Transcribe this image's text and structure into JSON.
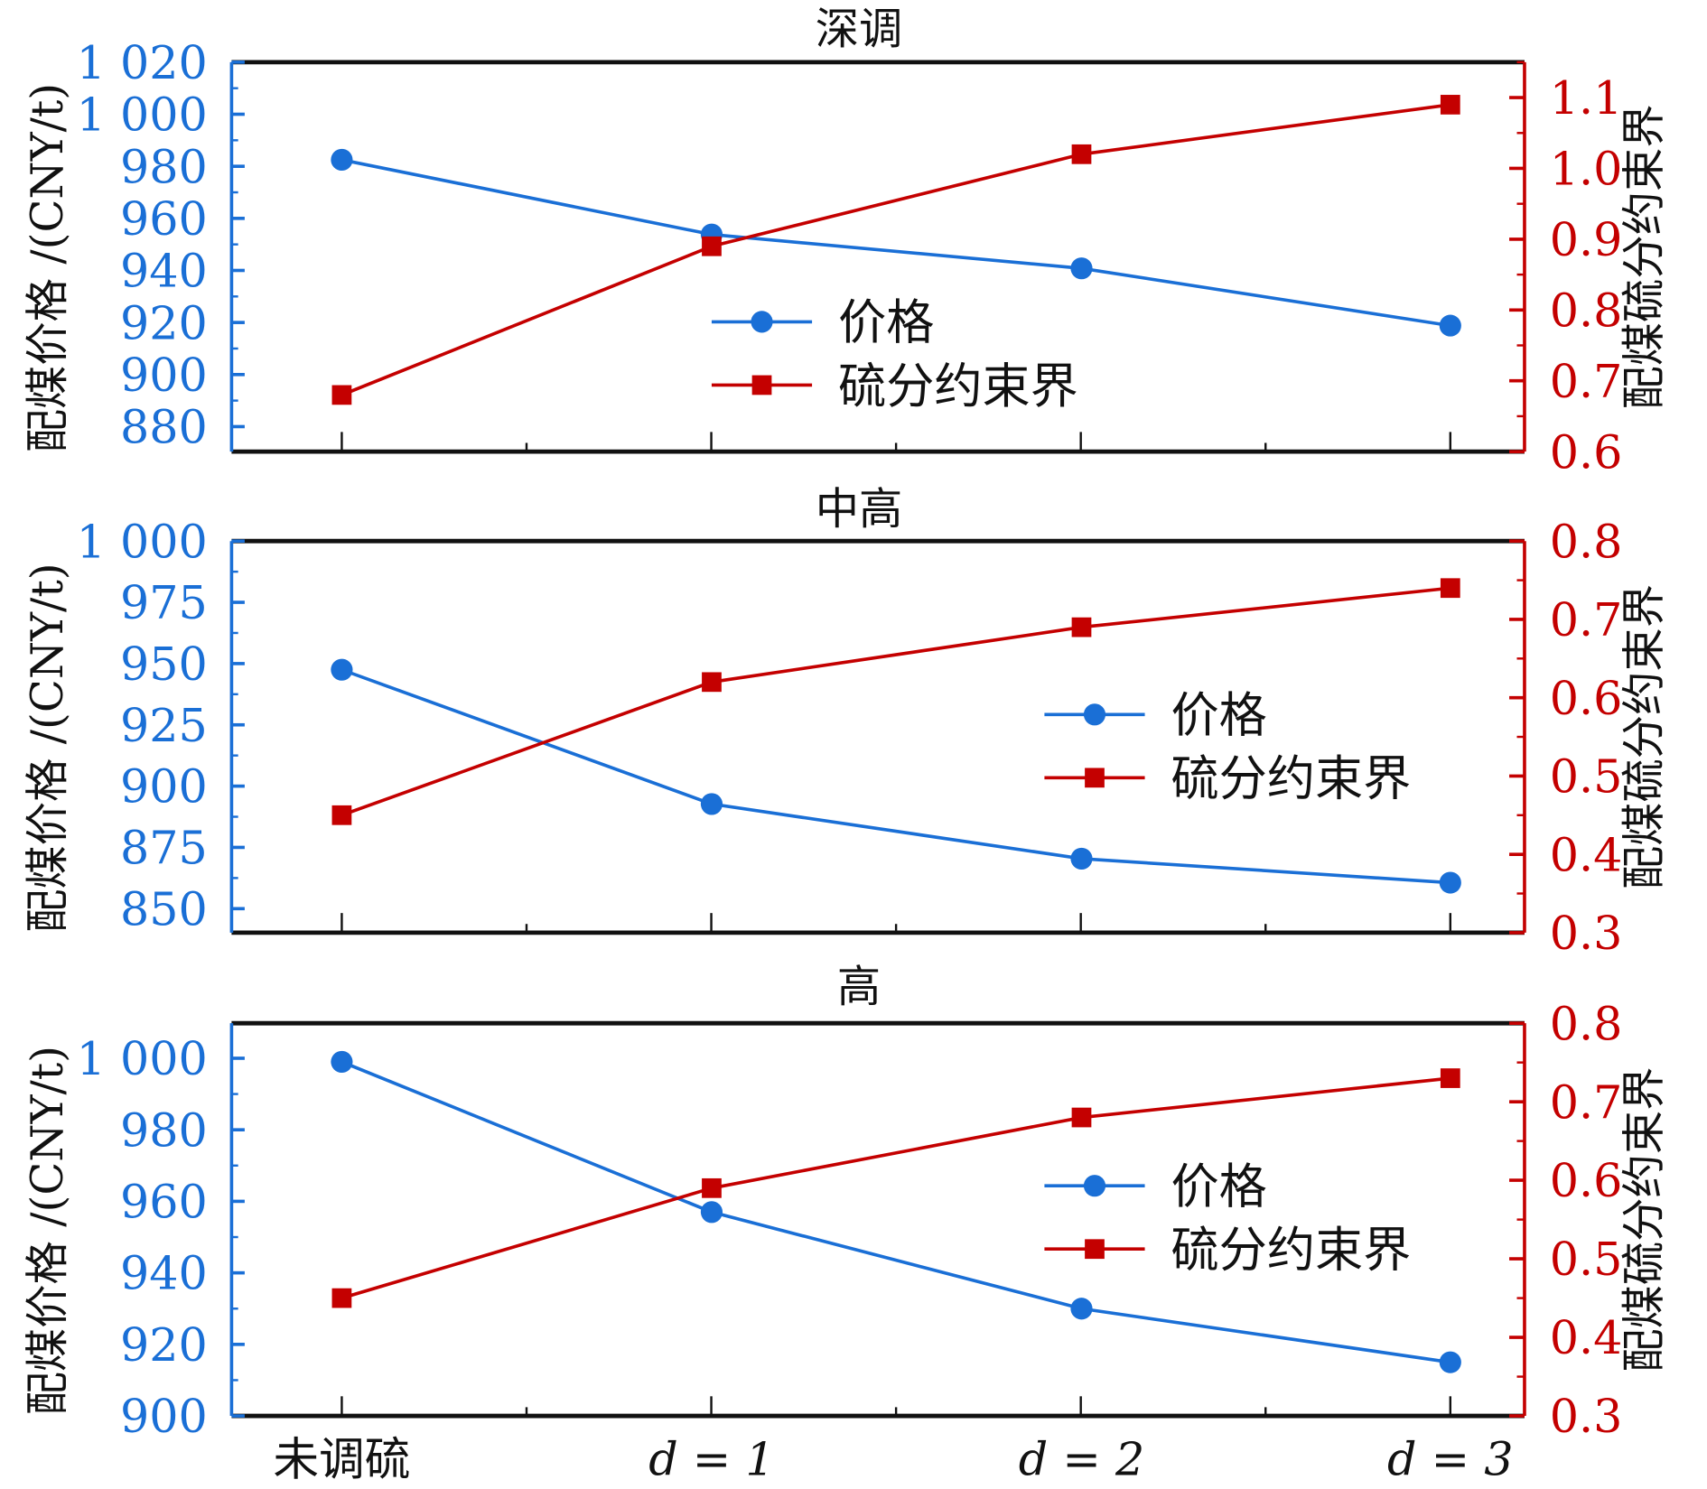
{
  "chart_data": [
    {
      "type": "line",
      "title": "深调",
      "categories": [
        "未调硫",
        "d = 1",
        "d = 2",
        "d = 3"
      ],
      "ylabel": "配煤价格 /(CNY/t)",
      "ylabel_right": "配煤硫分约束界",
      "ylim": [
        870.4,
        1020
      ],
      "ylim_right": [
        0.6,
        1.15
      ],
      "yticks": [
        "880",
        "900",
        "920",
        "940",
        "960",
        "980",
        "1 000",
        "1 020"
      ],
      "ytick_values": [
        880,
        900,
        920,
        940,
        960,
        980,
        1000,
        1020
      ],
      "yticks_right": [
        "0.6",
        "0.7",
        "0.8",
        "0.9",
        "1.0",
        "1.1"
      ],
      "ytick_values_right": [
        0.6,
        0.7,
        0.8,
        0.9,
        1.0,
        1.1
      ],
      "legend_position": "center",
      "series": [
        {
          "name": "价格",
          "axis": "left",
          "color": "#1a6fd6",
          "marker": "circle",
          "values": [
            982.5,
            953.8,
            940.8,
            918.8
          ]
        },
        {
          "name": "硫分约束界",
          "axis": "right",
          "color": "#c40000",
          "marker": "square",
          "values": [
            0.68,
            0.89,
            1.02,
            1.09
          ]
        }
      ]
    },
    {
      "type": "line",
      "title": "中高",
      "categories": [
        "未调硫",
        "d = 1",
        "d = 2",
        "d = 3"
      ],
      "ylabel": "配煤价格 /(CNY/t)",
      "ylabel_right": "配煤硫分约束界",
      "ylim": [
        840.2,
        1000
      ],
      "ylim_right": [
        0.3,
        0.8
      ],
      "yticks": [
        "850",
        "875",
        "900",
        "925",
        "950",
        "975",
        "1 000"
      ],
      "ytick_values": [
        850,
        875,
        900,
        925,
        950,
        975,
        1000
      ],
      "yticks_right": [
        "0.3",
        "0.4",
        "0.5",
        "0.6",
        "0.7",
        "0.8"
      ],
      "ytick_values_right": [
        0.3,
        0.4,
        0.5,
        0.6,
        0.7,
        0.8
      ],
      "legend_position": "center-right",
      "series": [
        {
          "name": "价格",
          "axis": "left",
          "color": "#1a6fd6",
          "marker": "circle",
          "values": [
            947.5,
            892.7,
            870.4,
            860.6
          ]
        },
        {
          "name": "硫分约束界",
          "axis": "right",
          "color": "#c40000",
          "marker": "square",
          "values": [
            0.45,
            0.62,
            0.69,
            0.74
          ]
        }
      ]
    },
    {
      "type": "line",
      "title": "高",
      "categories": [
        "未调硫",
        "d = 1",
        "d = 2",
        "d = 3"
      ],
      "ylabel": "配煤价格 /(CNY/t)",
      "ylabel_right": "配煤硫分约束界",
      "ylim": [
        900,
        1009.8
      ],
      "ylim_right": [
        0.3,
        0.8
      ],
      "yticks": [
        "900",
        "920",
        "940",
        "960",
        "980",
        "1 000"
      ],
      "ytick_values": [
        900,
        920,
        940,
        960,
        980,
        1000
      ],
      "yticks_right": [
        "0.3",
        "0.4",
        "0.5",
        "0.6",
        "0.7",
        "0.8"
      ],
      "ytick_values_right": [
        0.3,
        0.4,
        0.5,
        0.6,
        0.7,
        0.8
      ],
      "legend_position": "center-right",
      "series": [
        {
          "name": "价格",
          "axis": "left",
          "color": "#1a6fd6",
          "marker": "circle",
          "values": [
            999,
            957,
            930,
            915
          ]
        },
        {
          "name": "硫分约束界",
          "axis": "right",
          "color": "#c40000",
          "marker": "square",
          "values": [
            0.45,
            0.59,
            0.68,
            0.73
          ]
        }
      ]
    }
  ]
}
